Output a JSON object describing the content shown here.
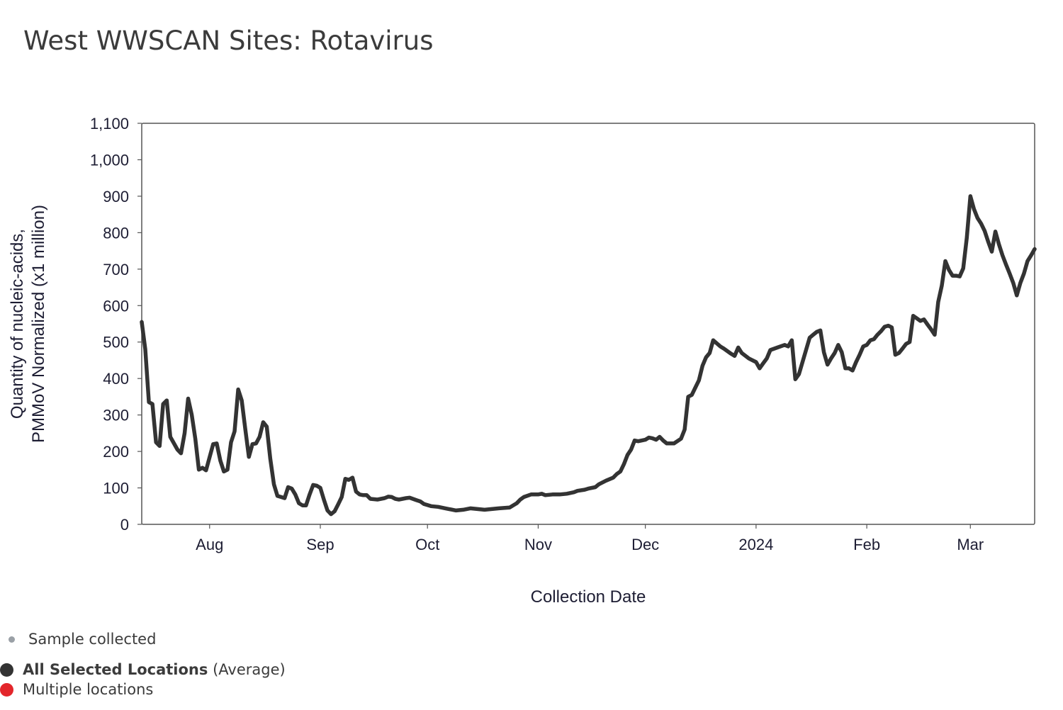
{
  "title": "West WWSCAN Sites: Rotavirus",
  "colors": {
    "line": "#333333",
    "sample_dot": "#9aa0a6",
    "selected_dot": "#333333",
    "multi_dot": "#e3262b",
    "frame": "#555555",
    "text": "#1d1d33"
  },
  "legend": {
    "sample": "Sample collected",
    "selected_bold": "All Selected Locations",
    "selected_suffix": " (Average)",
    "multiple": "Multiple locations"
  },
  "chart_data": {
    "type": "line",
    "title": "West WWSCAN Sites: Rotavirus",
    "xlabel": "Collection Date",
    "ylabel_lines": [
      "Quantity of nucleic-acids,",
      "PMMoV Normalized (x1 million)"
    ],
    "xlim": [
      "2023-07-13",
      "2024-03-19"
    ],
    "ylim": [
      0,
      1100
    ],
    "yticks": [
      0,
      100,
      200,
      300,
      400,
      500,
      600,
      700,
      800,
      900,
      1000,
      1100
    ],
    "ytick_labels": [
      "0",
      "100",
      "200",
      "300",
      "400",
      "500",
      "600",
      "700",
      "800",
      "900",
      "1,000",
      "1,100"
    ],
    "xticks": [
      {
        "date": "2023-08-01",
        "label": "Aug"
      },
      {
        "date": "2023-09-01",
        "label": "Sep"
      },
      {
        "date": "2023-10-01",
        "label": "Oct"
      },
      {
        "date": "2023-11-01",
        "label": "Nov"
      },
      {
        "date": "2023-12-01",
        "label": "Dec"
      },
      {
        "date": "2024-01-01",
        "label": "2024"
      },
      {
        "date": "2024-02-01",
        "label": "Feb"
      },
      {
        "date": "2024-03-01",
        "label": "Mar"
      }
    ],
    "grid": false,
    "series": [
      {
        "name": "All Selected Locations",
        "points": [
          [
            "2023-07-13",
            555
          ],
          [
            "2023-07-14",
            480
          ],
          [
            "2023-07-15",
            335
          ],
          [
            "2023-07-16",
            330
          ],
          [
            "2023-07-17",
            225
          ],
          [
            "2023-07-18",
            215
          ],
          [
            "2023-07-19",
            330
          ],
          [
            "2023-07-20",
            340
          ],
          [
            "2023-07-21",
            240
          ],
          [
            "2023-07-23",
            205
          ],
          [
            "2023-07-24",
            195
          ],
          [
            "2023-07-25",
            250
          ],
          [
            "2023-07-26",
            345
          ],
          [
            "2023-07-27",
            300
          ],
          [
            "2023-07-28",
            235
          ],
          [
            "2023-07-29",
            150
          ],
          [
            "2023-07-30",
            155
          ],
          [
            "2023-07-31",
            148
          ],
          [
            "2023-08-02",
            220
          ],
          [
            "2023-08-03",
            222
          ],
          [
            "2023-08-04",
            175
          ],
          [
            "2023-08-05",
            145
          ],
          [
            "2023-08-06",
            150
          ],
          [
            "2023-08-07",
            225
          ],
          [
            "2023-08-08",
            255
          ],
          [
            "2023-08-09",
            370
          ],
          [
            "2023-08-10",
            340
          ],
          [
            "2023-08-11",
            260
          ],
          [
            "2023-08-12",
            185
          ],
          [
            "2023-08-13",
            220
          ],
          [
            "2023-08-14",
            222
          ],
          [
            "2023-08-15",
            240
          ],
          [
            "2023-08-16",
            280
          ],
          [
            "2023-08-17",
            268
          ],
          [
            "2023-08-18",
            180
          ],
          [
            "2023-08-19",
            110
          ],
          [
            "2023-08-20",
            78
          ],
          [
            "2023-08-21",
            75
          ],
          [
            "2023-08-22",
            72
          ],
          [
            "2023-08-23",
            102
          ],
          [
            "2023-08-24",
            98
          ],
          [
            "2023-08-25",
            82
          ],
          [
            "2023-08-26",
            58
          ],
          [
            "2023-08-27",
            52
          ],
          [
            "2023-08-28",
            52
          ],
          [
            "2023-08-29",
            82
          ],
          [
            "2023-08-30",
            108
          ],
          [
            "2023-08-31",
            106
          ],
          [
            "2023-09-01",
            100
          ],
          [
            "2023-09-02",
            68
          ],
          [
            "2023-09-03",
            38
          ],
          [
            "2023-09-04",
            28
          ],
          [
            "2023-09-05",
            36
          ],
          [
            "2023-09-06",
            55
          ],
          [
            "2023-09-07",
            75
          ],
          [
            "2023-09-08",
            125
          ],
          [
            "2023-09-09",
            122
          ],
          [
            "2023-09-10",
            128
          ],
          [
            "2023-09-11",
            90
          ],
          [
            "2023-09-12",
            82
          ],
          [
            "2023-09-13",
            80
          ],
          [
            "2023-09-14",
            80
          ],
          [
            "2023-09-15",
            70
          ],
          [
            "2023-09-17",
            68
          ],
          [
            "2023-09-19",
            72
          ],
          [
            "2023-09-20",
            76
          ],
          [
            "2023-09-21",
            75
          ],
          [
            "2023-09-22",
            70
          ],
          [
            "2023-09-23",
            68
          ],
          [
            "2023-09-25",
            72
          ],
          [
            "2023-09-26",
            73
          ],
          [
            "2023-09-28",
            66
          ],
          [
            "2023-09-29",
            63
          ],
          [
            "2023-09-30",
            56
          ],
          [
            "2023-10-02",
            50
          ],
          [
            "2023-10-04",
            48
          ],
          [
            "2023-10-06",
            44
          ],
          [
            "2023-10-07",
            42
          ],
          [
            "2023-10-09",
            38
          ],
          [
            "2023-10-11",
            40
          ],
          [
            "2023-10-13",
            44
          ],
          [
            "2023-10-15",
            42
          ],
          [
            "2023-10-17",
            40
          ],
          [
            "2023-10-19",
            42
          ],
          [
            "2023-10-21",
            44
          ],
          [
            "2023-10-24",
            46
          ],
          [
            "2023-10-25",
            52
          ],
          [
            "2023-10-26",
            58
          ],
          [
            "2023-10-27",
            68
          ],
          [
            "2023-10-28",
            75
          ],
          [
            "2023-10-30",
            82
          ],
          [
            "2023-11-01",
            82
          ],
          [
            "2023-11-02",
            84
          ],
          [
            "2023-11-03",
            80
          ],
          [
            "2023-11-05",
            82
          ],
          [
            "2023-11-07",
            82
          ],
          [
            "2023-11-09",
            84
          ],
          [
            "2023-11-11",
            88
          ],
          [
            "2023-11-12",
            92
          ],
          [
            "2023-11-14",
            95
          ],
          [
            "2023-11-15",
            98
          ],
          [
            "2023-11-17",
            102
          ],
          [
            "2023-11-18",
            110
          ],
          [
            "2023-11-20",
            120
          ],
          [
            "2023-11-22",
            128
          ],
          [
            "2023-11-23",
            138
          ],
          [
            "2023-11-24",
            145
          ],
          [
            "2023-11-25",
            165
          ],
          [
            "2023-11-26",
            190
          ],
          [
            "2023-11-27",
            205
          ],
          [
            "2023-11-28",
            230
          ],
          [
            "2023-11-29",
            228
          ],
          [
            "2023-12-01",
            232
          ],
          [
            "2023-12-02",
            238
          ],
          [
            "2023-12-03",
            236
          ],
          [
            "2023-12-04",
            232
          ],
          [
            "2023-12-05",
            240
          ],
          [
            "2023-12-06",
            230
          ],
          [
            "2023-12-07",
            222
          ],
          [
            "2023-12-09",
            222
          ],
          [
            "2023-12-11",
            235
          ],
          [
            "2023-12-12",
            260
          ],
          [
            "2023-12-13",
            350
          ],
          [
            "2023-12-14",
            355
          ],
          [
            "2023-12-15",
            375
          ],
          [
            "2023-12-16",
            395
          ],
          [
            "2023-12-17",
            435
          ],
          [
            "2023-12-18",
            458
          ],
          [
            "2023-12-19",
            470
          ],
          [
            "2023-12-20",
            505
          ],
          [
            "2023-12-22",
            488
          ],
          [
            "2023-12-23",
            482
          ],
          [
            "2023-12-25",
            468
          ],
          [
            "2023-12-26",
            462
          ],
          [
            "2023-12-27",
            485
          ],
          [
            "2023-12-28",
            470
          ],
          [
            "2023-12-30",
            455
          ],
          [
            "2024-01-01",
            445
          ],
          [
            "2024-01-02",
            428
          ],
          [
            "2024-01-03",
            442
          ],
          [
            "2024-01-04",
            455
          ],
          [
            "2024-01-05",
            478
          ],
          [
            "2024-01-07",
            485
          ],
          [
            "2024-01-09",
            492
          ],
          [
            "2024-01-10",
            488
          ],
          [
            "2024-01-11",
            505
          ],
          [
            "2024-01-12",
            398
          ],
          [
            "2024-01-13",
            412
          ],
          [
            "2024-01-14",
            445
          ],
          [
            "2024-01-15",
            478
          ],
          [
            "2024-01-16",
            512
          ],
          [
            "2024-01-17",
            520
          ],
          [
            "2024-01-18",
            528
          ],
          [
            "2024-01-19",
            532
          ],
          [
            "2024-01-20",
            472
          ],
          [
            "2024-01-21",
            438
          ],
          [
            "2024-01-22",
            455
          ],
          [
            "2024-01-23",
            470
          ],
          [
            "2024-01-24",
            492
          ],
          [
            "2024-01-25",
            472
          ],
          [
            "2024-01-26",
            428
          ],
          [
            "2024-01-27",
            428
          ],
          [
            "2024-01-28",
            422
          ],
          [
            "2024-01-29",
            445
          ],
          [
            "2024-01-30",
            465
          ],
          [
            "2024-01-31",
            488
          ],
          [
            "2024-02-01",
            492
          ],
          [
            "2024-02-02",
            505
          ],
          [
            "2024-02-03",
            508
          ],
          [
            "2024-02-04",
            520
          ],
          [
            "2024-02-05",
            530
          ],
          [
            "2024-02-06",
            542
          ],
          [
            "2024-02-07",
            545
          ],
          [
            "2024-02-08",
            540
          ],
          [
            "2024-02-09",
            465
          ],
          [
            "2024-02-10",
            470
          ],
          [
            "2024-02-11",
            482
          ],
          [
            "2024-02-12",
            495
          ],
          [
            "2024-02-13",
            500
          ],
          [
            "2024-02-14",
            572
          ],
          [
            "2024-02-15",
            565
          ],
          [
            "2024-02-16",
            558
          ],
          [
            "2024-02-17",
            562
          ],
          [
            "2024-02-18",
            548
          ],
          [
            "2024-02-19",
            535
          ],
          [
            "2024-02-20",
            520
          ],
          [
            "2024-02-21",
            610
          ],
          [
            "2024-02-22",
            655
          ],
          [
            "2024-02-23",
            722
          ],
          [
            "2024-02-24",
            698
          ],
          [
            "2024-02-25",
            682
          ],
          [
            "2024-02-26",
            682
          ],
          [
            "2024-02-27",
            680
          ],
          [
            "2024-02-28",
            702
          ],
          [
            "2024-02-29",
            785
          ],
          [
            "2024-03-01",
            900
          ],
          [
            "2024-03-02",
            865
          ],
          [
            "2024-03-03",
            840
          ],
          [
            "2024-03-04",
            825
          ],
          [
            "2024-03-05",
            805
          ],
          [
            "2024-03-06",
            775
          ],
          [
            "2024-03-07",
            748
          ],
          [
            "2024-03-08",
            803
          ],
          [
            "2024-03-09",
            768
          ],
          [
            "2024-03-10",
            738
          ],
          [
            "2024-03-11",
            712
          ],
          [
            "2024-03-12",
            688
          ],
          [
            "2024-03-13",
            662
          ],
          [
            "2024-03-14",
            628
          ],
          [
            "2024-03-15",
            662
          ],
          [
            "2024-03-16",
            688
          ],
          [
            "2024-03-17",
            722
          ],
          [
            "2024-03-18",
            738
          ],
          [
            "2024-03-19",
            755
          ]
        ]
      }
    ]
  }
}
